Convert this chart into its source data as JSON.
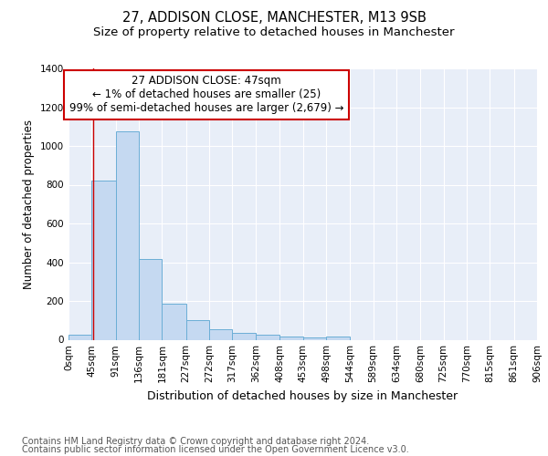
{
  "title1": "27, ADDISON CLOSE, MANCHESTER, M13 9SB",
  "title2": "Size of property relative to detached houses in Manchester",
  "xlabel": "Distribution of detached houses by size in Manchester",
  "ylabel": "Number of detached properties",
  "bar_edges": [
    0,
    45,
    91,
    136,
    181,
    227,
    272,
    317,
    362,
    408,
    453,
    498,
    544,
    589,
    634,
    680,
    725,
    770,
    815,
    861,
    906
  ],
  "bar_heights": [
    25,
    820,
    1075,
    415,
    185,
    100,
    55,
    35,
    25,
    15,
    10,
    15,
    0,
    0,
    0,
    0,
    0,
    0,
    0,
    0
  ],
  "bar_color": "#c5d9f1",
  "bar_edge_color": "#6baed6",
  "background_color": "#e8eef8",
  "grid_color": "#ffffff",
  "red_line_x": 47,
  "annotation_text": "27 ADDISON CLOSE: 47sqm\n← 1% of detached houses are smaller (25)\n99% of semi-detached houses are larger (2,679) →",
  "annotation_box_color": "#ffffff",
  "annotation_box_edge_color": "#cc0000",
  "ylim": [
    0,
    1400
  ],
  "yticks": [
    0,
    200,
    400,
    600,
    800,
    1000,
    1200,
    1400
  ],
  "xtick_labels": [
    "0sqm",
    "45sqm",
    "91sqm",
    "136sqm",
    "181sqm",
    "227sqm",
    "272sqm",
    "317sqm",
    "362sqm",
    "408sqm",
    "453sqm",
    "498sqm",
    "544sqm",
    "589sqm",
    "634sqm",
    "680sqm",
    "725sqm",
    "770sqm",
    "815sqm",
    "861sqm",
    "906sqm"
  ],
  "footer_line1": "Contains HM Land Registry data © Crown copyright and database right 2024.",
  "footer_line2": "Contains public sector information licensed under the Open Government Licence v3.0.",
  "title1_fontsize": 10.5,
  "title2_fontsize": 9.5,
  "xlabel_fontsize": 9,
  "ylabel_fontsize": 8.5,
  "tick_fontsize": 7.5,
  "annotation_fontsize": 8.5,
  "footer_fontsize": 7
}
